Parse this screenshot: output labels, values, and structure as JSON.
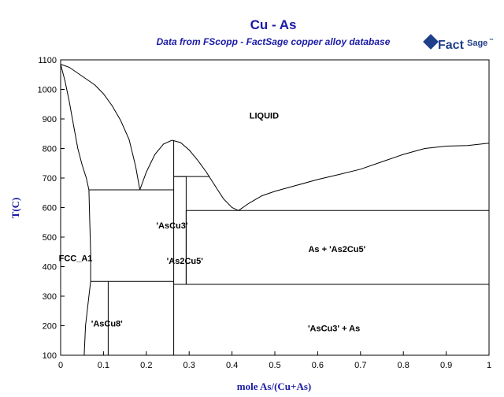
{
  "chart_data": {
    "type": "phase-diagram",
    "title": "Cu - As",
    "subtitle": "Data from FScopp - FactSage copper alloy database",
    "logo": {
      "brand": "Fact",
      "suffix": "Sage",
      "mark": "™"
    },
    "xlabel": "mole As/(Cu+As)",
    "ylabel": "T(C)",
    "xlim": [
      0,
      1
    ],
    "ylim": [
      100,
      1100
    ],
    "xticks": [
      0,
      0.1,
      0.2,
      0.3,
      0.4,
      0.5,
      0.6,
      0.7,
      0.8,
      0.9,
      1
    ],
    "yticks": [
      100,
      200,
      300,
      400,
      500,
      600,
      700,
      800,
      900,
      1000,
      1100
    ],
    "regions": [
      {
        "label": "LIQUID",
        "x": 0.475,
        "y": 912
      },
      {
        "label": "FCC_A1",
        "x": 0.035,
        "y": 430
      },
      {
        "label": "'AsCu3'",
        "x": 0.26,
        "y": 540
      },
      {
        "label": "'As2Cu5'",
        "x": 0.29,
        "y": 420
      },
      {
        "label": "As + 'As2Cu5'",
        "x": 0.645,
        "y": 460
      },
      {
        "label": "'AsCu8'",
        "x": 0.108,
        "y": 208
      },
      {
        "label": "'AsCu3' + As",
        "x": 0.638,
        "y": 192
      }
    ],
    "lines": [
      {
        "name": "liquidus-cu-side",
        "points": [
          [
            0,
            1085
          ],
          [
            0.02,
            1075
          ],
          [
            0.05,
            1045
          ],
          [
            0.08,
            1015
          ],
          [
            0.1,
            985
          ],
          [
            0.12,
            945
          ],
          [
            0.14,
            895
          ],
          [
            0.16,
            830
          ],
          [
            0.175,
            740
          ],
          [
            0.185,
            660
          ]
        ]
      },
      {
        "name": "solidus-fcc",
        "points": [
          [
            0,
            1085
          ],
          [
            0.01,
            1030
          ],
          [
            0.02,
            960
          ],
          [
            0.03,
            880
          ],
          [
            0.04,
            800
          ],
          [
            0.05,
            745
          ],
          [
            0.06,
            700
          ],
          [
            0.066,
            660
          ]
        ]
      },
      {
        "name": "fcc-solvus",
        "points": [
          [
            0.066,
            660
          ],
          [
            0.068,
            550
          ],
          [
            0.07,
            450
          ],
          [
            0.07,
            350
          ],
          [
            0.066,
            300
          ],
          [
            0.058,
            200
          ],
          [
            0.055,
            100
          ]
        ]
      },
      {
        "name": "liquidus-ascu3",
        "points": [
          [
            0.185,
            660
          ],
          [
            0.2,
            720
          ],
          [
            0.22,
            780
          ],
          [
            0.24,
            815
          ],
          [
            0.26,
            828
          ],
          [
            0.28,
            820
          ],
          [
            0.3,
            795
          ],
          [
            0.32,
            760
          ],
          [
            0.34,
            720
          ],
          [
            0.36,
            675
          ],
          [
            0.38,
            630
          ],
          [
            0.4,
            600
          ],
          [
            0.415,
            590
          ]
        ]
      },
      {
        "name": "liquidus-as-side",
        "points": [
          [
            0.415,
            590
          ],
          [
            0.44,
            615
          ],
          [
            0.47,
            640
          ],
          [
            0.5,
            655
          ],
          [
            0.55,
            675
          ],
          [
            0.6,
            695
          ],
          [
            0.65,
            712
          ],
          [
            0.7,
            730
          ],
          [
            0.75,
            755
          ],
          [
            0.8,
            780
          ],
          [
            0.85,
            800
          ],
          [
            0.9,
            808
          ],
          [
            0.95,
            810
          ],
          [
            1,
            818
          ]
        ]
      },
      {
        "name": "eutectic-660",
        "points": [
          [
            0.066,
            660
          ],
          [
            0.264,
            660
          ]
        ]
      },
      {
        "name": "peritectic-705",
        "points": [
          [
            0.264,
            705
          ],
          [
            0.348,
            705
          ]
        ]
      },
      {
        "name": "eutectic-590",
        "points": [
          [
            0.293,
            590
          ],
          [
            1,
            590
          ]
        ]
      },
      {
        "name": "eutectoid-350",
        "points": [
          [
            0.07,
            350
          ],
          [
            0.264,
            350
          ]
        ]
      },
      {
        "name": "eutectoid-340",
        "points": [
          [
            0.264,
            340
          ],
          [
            1,
            340
          ]
        ]
      },
      {
        "name": "ascu3-phase-line",
        "points": [
          [
            0.264,
            828
          ],
          [
            0.264,
            100
          ]
        ]
      },
      {
        "name": "as2cu5-line-1",
        "points": [
          [
            0.264,
            705
          ],
          [
            0.293,
            705
          ],
          [
            0.293,
            340
          ]
        ]
      },
      {
        "name": "as2cu5-line-2",
        "points": [
          [
            0.293,
            590
          ],
          [
            0.293,
            340
          ]
        ]
      },
      {
        "name": "ascu8-line",
        "points": [
          [
            0.111,
            350
          ],
          [
            0.111,
            100
          ]
        ]
      }
    ]
  }
}
